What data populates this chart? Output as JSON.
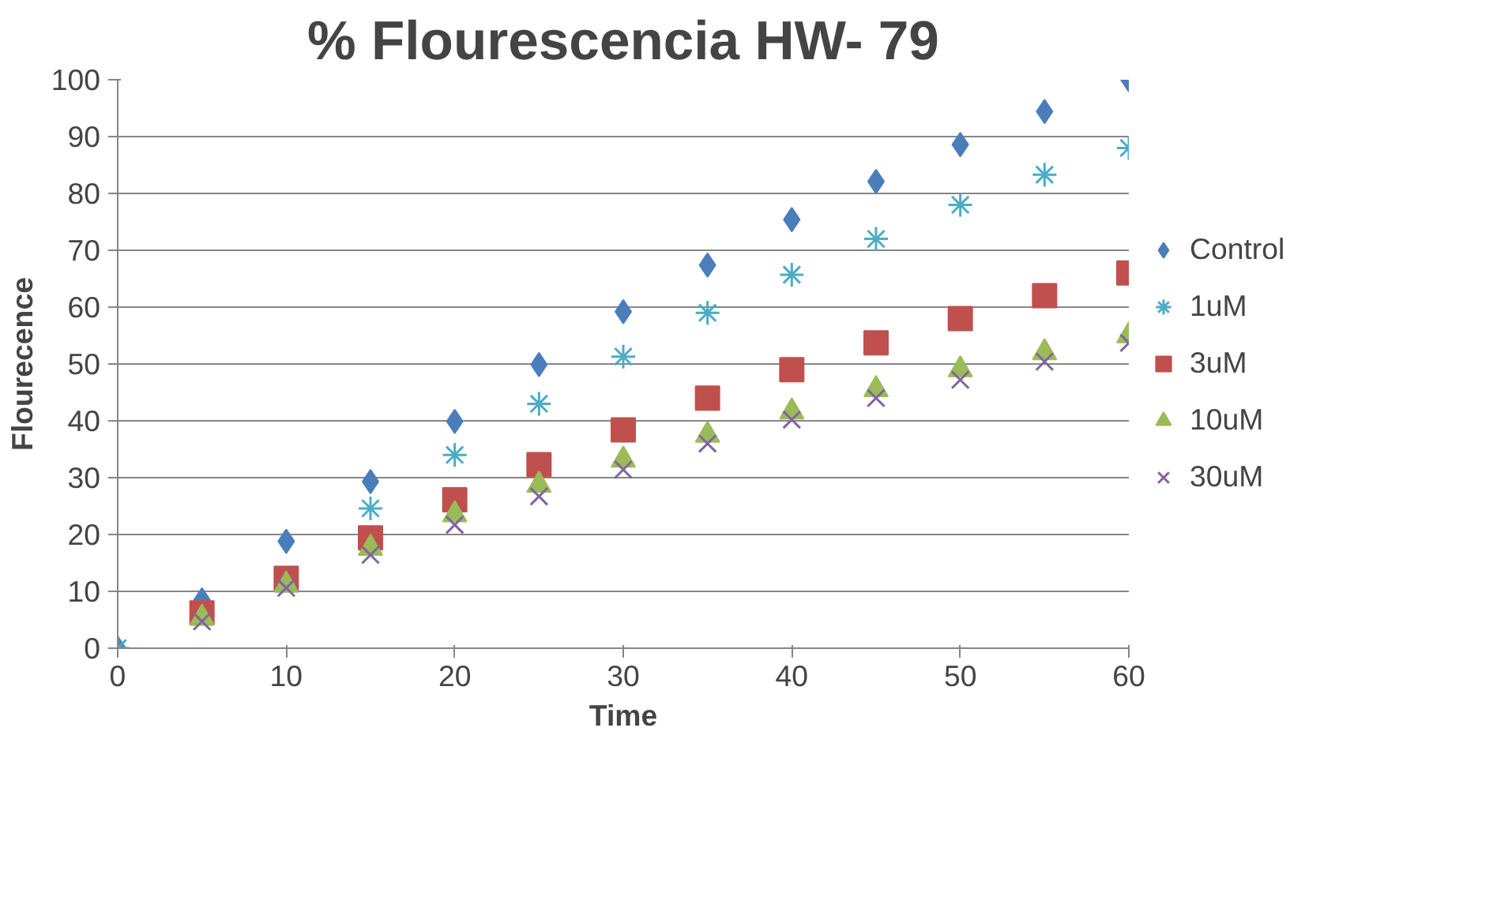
{
  "chart_data": {
    "type": "scatter",
    "title": "% Flourescencia HW- 79",
    "xlabel": "Time",
    "ylabel": "Flourecence",
    "x": [
      0,
      5,
      10,
      15,
      20,
      25,
      30,
      35,
      40,
      45,
      50,
      55,
      60
    ],
    "xlim": [
      0,
      60
    ],
    "xticks": [
      0,
      10,
      20,
      30,
      40,
      50,
      60
    ],
    "ylim": [
      0,
      100
    ],
    "yticks": [
      0,
      10,
      20,
      30,
      40,
      50,
      60,
      70,
      80,
      90,
      100
    ],
    "grid": "y",
    "legend": "right",
    "series": [
      {
        "name": "Control",
        "color": "#4a7ebb",
        "marker": "diamond",
        "values": [
          0,
          8.5,
          18.8,
          29.3,
          39.9,
          49.9,
          59.2,
          67.4,
          75.4,
          82.1,
          88.6,
          94.4,
          100
        ]
      },
      {
        "name": "1uM",
        "color": "#4bacc6",
        "values": [
          0,
          null,
          null,
          24.6,
          34,
          43,
          51.3,
          59,
          65.7,
          72,
          78,
          83.3,
          88
        ]
      },
      {
        "name": "3uM",
        "color": "#c0504d",
        "marker": "square",
        "values": [
          null,
          6.2,
          12.3,
          19.4,
          26.1,
          32.3,
          38.4,
          44,
          49,
          53.7,
          58,
          62,
          66
        ]
      },
      {
        "name": "10uM",
        "color": "#9bbb59",
        "marker": "triangle",
        "values": [
          null,
          5.3,
          11.1,
          17.6,
          23.5,
          28.7,
          33.1,
          37.5,
          41.6,
          45.5,
          49,
          52,
          55
        ]
      },
      {
        "name": "30uM",
        "color": "#8064a2",
        "marker": "cross",
        "values": [
          null,
          4.7,
          10.6,
          16.4,
          21.7,
          26.7,
          31.4,
          36,
          40.2,
          44,
          47.2,
          50.4,
          53.7
        ]
      }
    ]
  }
}
